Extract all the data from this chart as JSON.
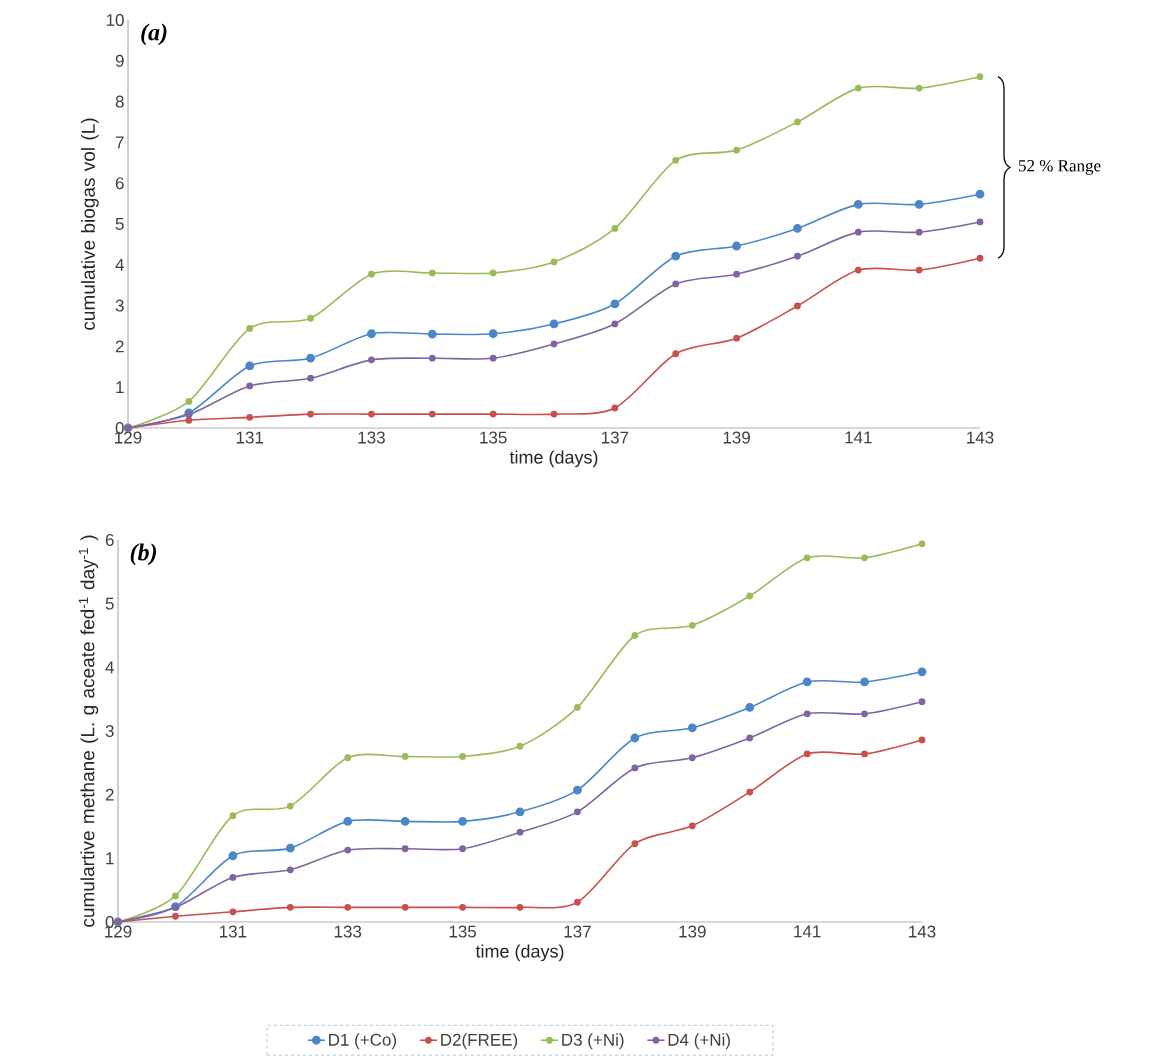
{
  "chart_data": [
    {
      "type": "line",
      "title": "(a)",
      "xlabel": "time (days)",
      "ylabel": "cumulative biogas vol (L)",
      "x": [
        129,
        130,
        131,
        132,
        133,
        134,
        135,
        136,
        137,
        138,
        139,
        140,
        141,
        142,
        143
      ],
      "series": [
        {
          "color": "#4a86c8",
          "values": [
            0,
            0.37,
            1.52,
            1.71,
            2.31,
            2.3,
            2.31,
            2.55,
            3.04,
            4.21,
            4.46,
            4.89,
            5.48,
            5.48,
            5.73
          ]
        },
        {
          "color": "#c9504d",
          "values": [
            0,
            0.19,
            0.26,
            0.34,
            0.34,
            0.34,
            0.34,
            0.34,
            0.49,
            1.82,
            2.2,
            2.99,
            3.87,
            3.87,
            4.16
          ]
        },
        {
          "color": "#9bbb59",
          "values": [
            0,
            0.65,
            2.44,
            2.69,
            3.77,
            3.8,
            3.8,
            4.07,
            4.89,
            6.56,
            6.81,
            7.5,
            8.33,
            8.33,
            8.61
          ]
        },
        {
          "color": "#8064a2",
          "values": [
            0,
            0.33,
            1.03,
            1.22,
            1.67,
            1.71,
            1.71,
            2.06,
            2.55,
            3.53,
            3.77,
            4.21,
            4.8,
            4.8,
            5.05
          ]
        }
      ],
      "xlim": [
        129,
        143
      ],
      "ylim": [
        0,
        10
      ],
      "xticks": [
        129,
        131,
        133,
        135,
        137,
        139,
        141,
        143
      ],
      "yticks": [
        0,
        1,
        2,
        3,
        4,
        5,
        6,
        7,
        8,
        9,
        10
      ],
      "annotations": [
        "52 % Range"
      ],
      "grid": false,
      "marker": "circle",
      "line_style": "solid"
    },
    {
      "type": "line",
      "title": "(b)",
      "xlabel": "time (days)",
      "ylabel": "cumulartive methane (L. g aceate fed$^{-1}$ day$^{-1}$ )",
      "x": [
        129,
        130,
        131,
        132,
        133,
        134,
        135,
        136,
        137,
        138,
        139,
        140,
        141,
        142,
        143
      ],
      "series": [
        {
          "name": "D1 (+Co)",
          "color": "#4a86c8",
          "values": [
            0,
            0.24,
            1.04,
            1.16,
            1.58,
            1.58,
            1.58,
            1.73,
            2.07,
            2.89,
            3.05,
            3.37,
            3.77,
            3.77,
            3.93
          ]
        },
        {
          "name": "D2(FREE)",
          "color": "#c9504d",
          "values": [
            0,
            0.09,
            0.16,
            0.23,
            0.23,
            0.23,
            0.23,
            0.23,
            0.31,
            1.23,
            1.51,
            2.04,
            2.64,
            2.64,
            2.86
          ]
        },
        {
          "name": "D3 (+Ni)",
          "color": "#9bbb59",
          "values": [
            0,
            0.41,
            1.67,
            1.82,
            2.58,
            2.6,
            2.6,
            2.76,
            3.37,
            4.5,
            4.66,
            5.12,
            5.72,
            5.72,
            5.94
          ]
        },
        {
          "name": "D4 (+Ni)",
          "color": "#8064a2",
          "values": [
            0,
            0.23,
            0.7,
            0.82,
            1.13,
            1.15,
            1.15,
            1.41,
            1.73,
            2.42,
            2.58,
            2.89,
            3.27,
            3.27,
            3.46
          ]
        }
      ],
      "xlim": [
        129,
        143
      ],
      "ylim": [
        0,
        6
      ],
      "xticks": [
        129,
        131,
        133,
        135,
        137,
        139,
        141,
        143
      ],
      "yticks": [
        0,
        1,
        2,
        3,
        4,
        5,
        6
      ],
      "grid": false,
      "legend": "bottom",
      "marker": "circle",
      "line_style": "solid"
    }
  ]
}
